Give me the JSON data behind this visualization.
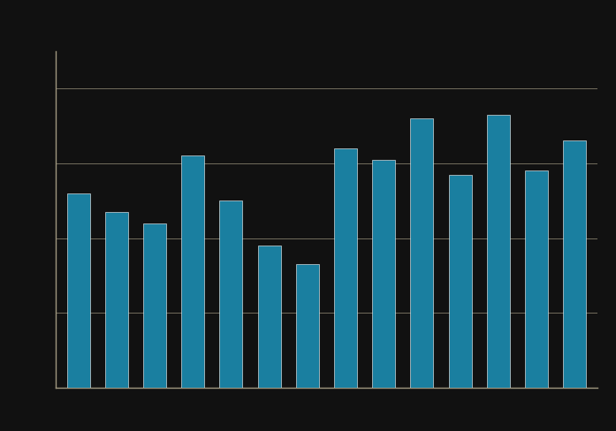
{
  "values": [
    52,
    47,
    44,
    62,
    50,
    38,
    33,
    64,
    61,
    72,
    57,
    73,
    58,
    66
  ],
  "bar_color": "#1a7fa0",
  "background_color": "#111111",
  "plot_bg_color": "#111111",
  "axis_color": "#a09880",
  "grid_color": "#a09880",
  "ylim": [
    0,
    90
  ],
  "yticks": [
    0,
    20,
    40,
    60,
    80
  ],
  "bar_width": 0.6,
  "figsize": [
    6.97,
    4.89
  ],
  "dpi": 100
}
